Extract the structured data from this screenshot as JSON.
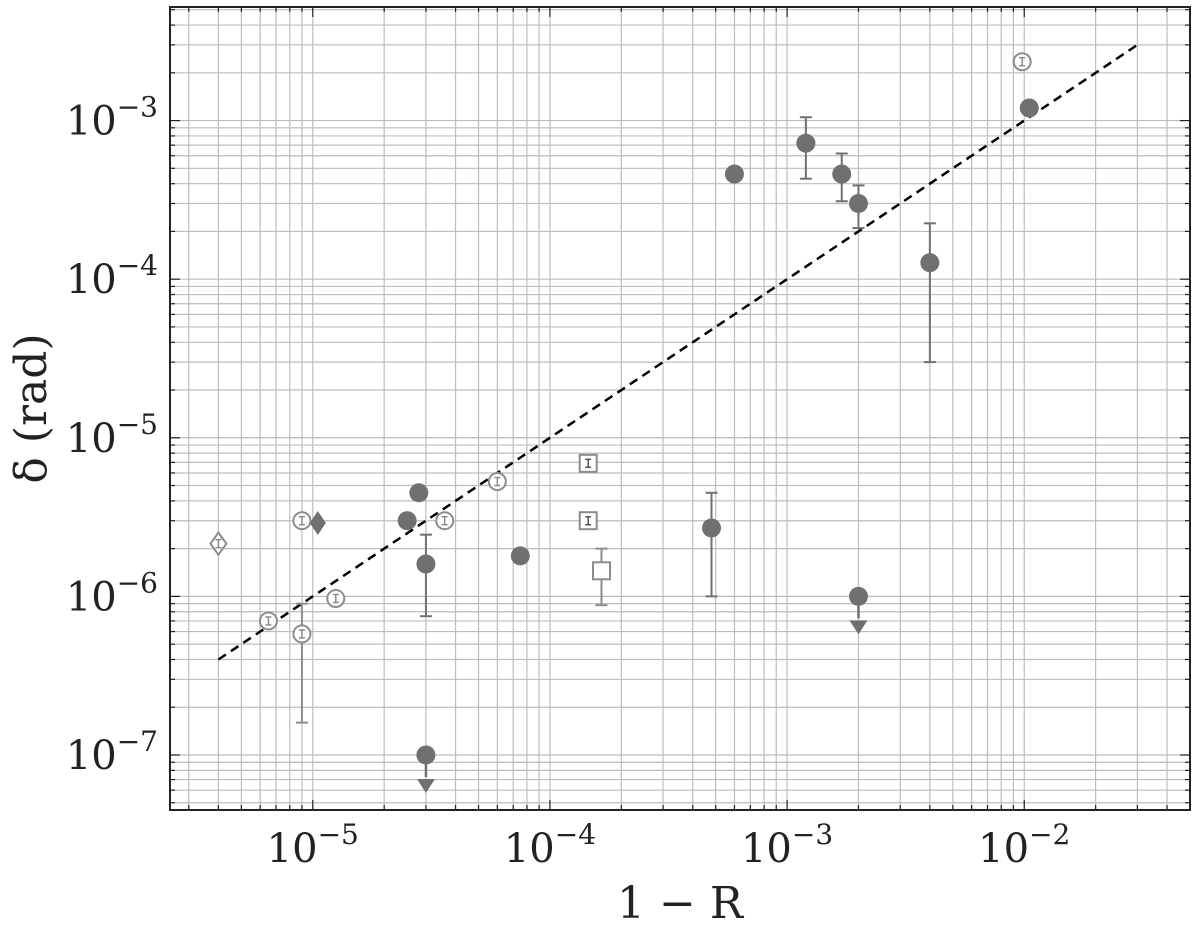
{
  "chart_data": {
    "type": "scatter",
    "x_scale": "log",
    "y_scale": "log",
    "xlabel": "1 − R",
    "ylabel": "δ (rad)",
    "xlim": [
      2.5e-06,
      0.05
    ],
    "ylim": [
      4.5e-08,
      0.0052
    ],
    "grid": "on (major and minor)",
    "x_ticks": [
      {
        "base": "10",
        "exp": "−5",
        "value": 1e-05
      },
      {
        "base": "10",
        "exp": "−4",
        "value": 0.0001
      },
      {
        "base": "10",
        "exp": "−3",
        "value": 0.001
      },
      {
        "base": "10",
        "exp": "−2",
        "value": 0.01
      }
    ],
    "y_ticks": [
      {
        "base": "10",
        "exp": "−7",
        "value": 1e-07
      },
      {
        "base": "10",
        "exp": "−6",
        "value": 1e-06
      },
      {
        "base": "10",
        "exp": "−5",
        "value": 1e-05
      },
      {
        "base": "10",
        "exp": "−4",
        "value": 0.0001
      },
      {
        "base": "10",
        "exp": "−3",
        "value": 0.001
      }
    ],
    "colors": {
      "filled": "#707070",
      "open": "#8c8c8c",
      "grid": "#bdbdbd",
      "fit": "#000000"
    },
    "fit_line": {
      "style": "dashed",
      "points": [
        [
          4e-06,
          4e-07
        ],
        [
          0.03,
          0.003
        ]
      ]
    },
    "series": [
      {
        "marker": "filled-circle",
        "points": [
          {
            "x": 2.5e-05,
            "y": 3e-06
          },
          {
            "x": 2.8e-05,
            "y": 4.5e-06
          },
          {
            "x": 3e-05,
            "y": 1.6e-06,
            "err_low": 7.5e-07,
            "err_high": 2.45e-06
          },
          {
            "x": 7.5e-05,
            "y": 1.8e-06
          },
          {
            "x": 0.00048,
            "y": 2.7e-06,
            "err_low": 1e-06,
            "err_high": 4.5e-06
          },
          {
            "x": 0.0006,
            "y": 0.00046
          },
          {
            "x": 0.0012,
            "y": 0.00072,
            "err_low": 0.00043,
            "err_high": 0.00105
          },
          {
            "x": 0.0017,
            "y": 0.00046,
            "err_low": 0.00031,
            "err_high": 0.00062
          },
          {
            "x": 0.002,
            "y": 0.0003,
            "err_low": 0.00021,
            "err_high": 0.00039
          },
          {
            "x": 0.004,
            "y": 0.000127,
            "err_low": 3e-05,
            "err_high": 0.000225
          },
          {
            "x": 0.0105,
            "y": 0.0012
          }
        ]
      },
      {
        "marker": "filled-circle-upper-limit",
        "points": [
          {
            "x": 3e-05,
            "y": 1e-07
          },
          {
            "x": 0.002,
            "y": 1e-06
          }
        ]
      },
      {
        "marker": "open-circle",
        "points": [
          {
            "x": 6.5e-06,
            "y": 7e-07
          },
          {
            "x": 9e-06,
            "y": 3e-06
          },
          {
            "x": 9e-06,
            "y": 5.8e-07,
            "err_low": 1.6e-07,
            "err_high": 9e-07
          },
          {
            "x": 1.25e-05,
            "y": 9.7e-07
          },
          {
            "x": 3.6e-05,
            "y": 3e-06
          },
          {
            "x": 6e-05,
            "y": 5.3e-06
          },
          {
            "x": 0.0098,
            "y": 0.00235
          }
        ]
      },
      {
        "marker": "open-square",
        "points": [
          {
            "x": 0.000145,
            "y": 6.9e-06
          },
          {
            "x": 0.000145,
            "y": 3e-06
          },
          {
            "x": 0.000165,
            "y": 1.45e-06,
            "err_low": 8.8e-07,
            "err_high": 2e-06
          }
        ]
      },
      {
        "marker": "open-diamond",
        "points": [
          {
            "x": 4e-06,
            "y": 2.15e-06
          }
        ]
      },
      {
        "marker": "filled-diamond",
        "points": [
          {
            "x": 1.05e-05,
            "y": 2.9e-06
          }
        ]
      }
    ]
  }
}
